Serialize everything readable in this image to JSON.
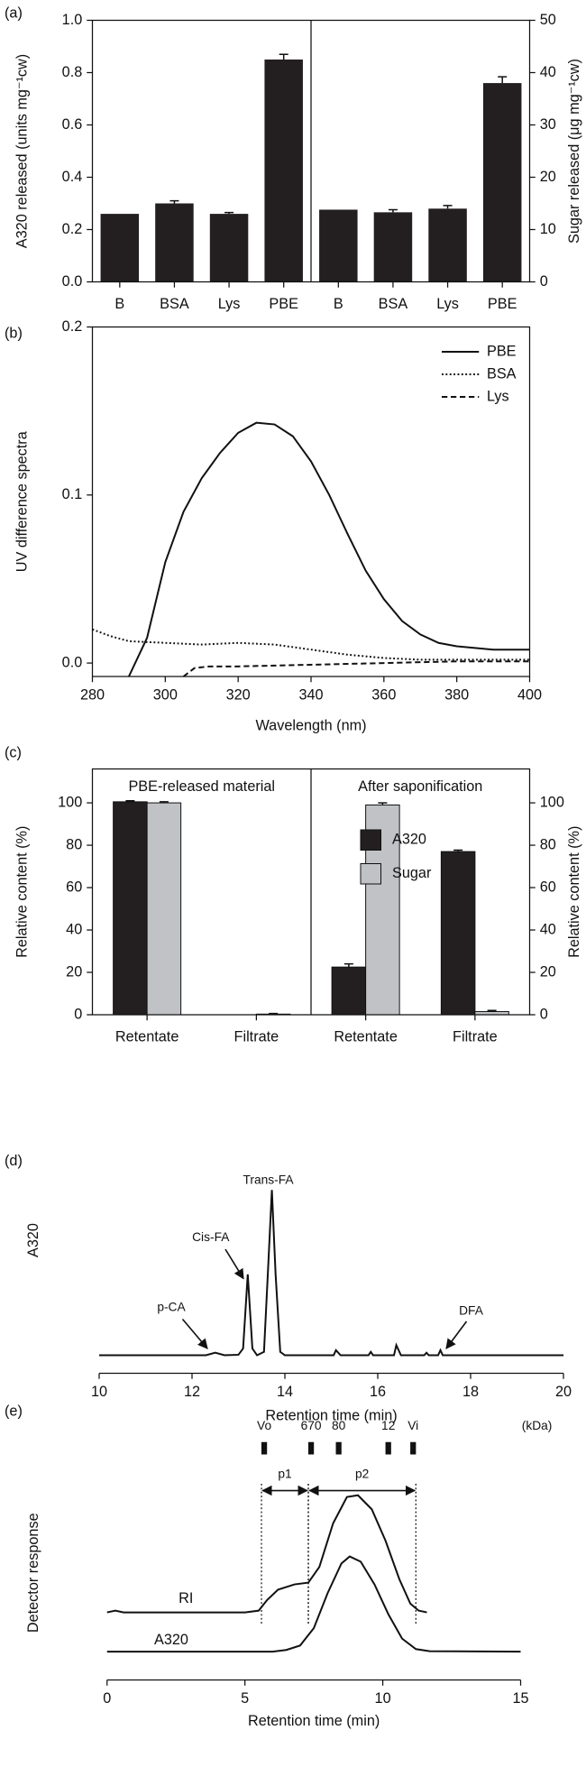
{
  "chart_data": [
    {
      "type": "bar",
      "panel_label": "(a)",
      "ylabel": "A320 released (units mg⁻¹cw)",
      "y2label": "Sugar released (μg mg⁻¹cw)",
      "ylim": [
        0,
        1
      ],
      "yticks": [
        {
          "value": 0,
          "label": "0.0"
        },
        0.2,
        0.4,
        0.6,
        0.8,
        {
          "value": 1,
          "label": "1.0"
        }
      ],
      "y2lim": [
        0,
        50
      ],
      "y2ticks": [
        0,
        10,
        20,
        30,
        40,
        50
      ],
      "color": "#231f20",
      "series": [
        {
          "axis": "y",
          "categories": [
            "B",
            "BSA",
            "Lys",
            "PBE"
          ],
          "values": [
            0.26,
            0.3,
            0.26,
            0.85
          ],
          "errors": [
            0,
            0.01,
            0.005,
            0.02
          ]
        },
        {
          "axis": "y2",
          "categories": [
            "B",
            "BSA",
            "Lys",
            "PBE"
          ],
          "values": [
            13.8,
            13.3,
            14,
            38
          ],
          "errors": [
            0,
            0.5,
            0.6,
            1.2
          ]
        }
      ]
    },
    {
      "type": "line",
      "panel_label": "(b)",
      "xlabel": "Wavelength (nm)",
      "ylabel": "UV difference spectra",
      "xlim": [
        280,
        400
      ],
      "xticks": [
        280,
        300,
        320,
        340,
        360,
        380,
        400
      ],
      "ylim": [
        -0.008,
        0.2
      ],
      "yticks": [
        {
          "value": 0,
          "label": "0.0"
        },
        0.1,
        0.2
      ],
      "legend": "top-right",
      "series": [
        {
          "name": "PBE",
          "color": "#111111",
          "line_style": "solid",
          "x": [
            290,
            295,
            300,
            305,
            310,
            315,
            320,
            325,
            330,
            335,
            340,
            345,
            350,
            355,
            360,
            365,
            370,
            375,
            380,
            390,
            400
          ],
          "values": [
            -0.008,
            0.015,
            0.06,
            0.09,
            0.11,
            0.125,
            0.137,
            0.143,
            0.142,
            0.135,
            0.12,
            0.1,
            0.077,
            0.055,
            0.038,
            0.025,
            0.017,
            0.012,
            0.01,
            0.008,
            0.008
          ]
        },
        {
          "name": "BSA",
          "color": "#111111",
          "line_style": "dotted",
          "x": [
            280,
            285,
            290,
            300,
            310,
            320,
            330,
            340,
            350,
            360,
            370,
            380,
            400
          ],
          "values": [
            0.02,
            0.016,
            0.013,
            0.012,
            0.011,
            0.012,
            0.011,
            0.008,
            0.005,
            0.003,
            0.002,
            0.002,
            0.002
          ]
        },
        {
          "name": "Lys",
          "color": "#111111",
          "line_style": "dashed",
          "x": [
            305,
            308,
            312,
            320,
            340,
            360,
            380,
            400
          ],
          "values": [
            -0.008,
            -0.003,
            -0.002,
            -0.002,
            -0.001,
            0,
            0.001,
            0.001
          ]
        }
      ]
    },
    {
      "type": "grouped_bar",
      "panel_label": "(c)",
      "ylabel": "Relative content (%)",
      "y2label": "Relative content (%)",
      "section_titles": [
        "PBE-released material",
        "After saponification"
      ],
      "categories": [
        "Retentate",
        "Filtrate",
        "Retentate",
        "Filtrate"
      ],
      "ylim": [
        0,
        116
      ],
      "yticks": [
        0,
        20,
        40,
        60,
        80,
        100
      ],
      "y2lim": [
        0,
        116
      ],
      "y2ticks": [
        0,
        20,
        40,
        60,
        80,
        100
      ],
      "legend": "top-right",
      "series": [
        {
          "name": "A320",
          "color": "#231f20",
          "values": [
            100.5,
            0,
            22.5,
            77
          ],
          "errors": [
            0.5,
            0,
            1.5,
            0.7
          ]
        },
        {
          "name": "Sugar",
          "color": "#c0c2c6",
          "values": [
            100,
            0.3,
            99,
            1.5
          ],
          "errors": [
            0.5,
            0.3,
            1,
            0.5
          ]
        }
      ]
    },
    {
      "type": "line",
      "panel_label": "(d)",
      "xlabel": "Retention time (min)",
      "ylabel": "A320",
      "xlim": [
        10,
        20
      ],
      "xticks": [
        10,
        12,
        14,
        16,
        18,
        20
      ],
      "ylim": [
        0,
        105
      ],
      "annotations": [
        "p-CA",
        "Cis-FA",
        "Trans-FA",
        "DFA"
      ],
      "series": [
        {
          "color": "#111111",
          "x": [
            10,
            12.3,
            12.5,
            12.7,
            13.0,
            13.1,
            13.2,
            13.3,
            13.4,
            13.55,
            13.65,
            13.72,
            13.8,
            13.9,
            14.0,
            15.05,
            15.1,
            15.2,
            15.8,
            15.85,
            15.9,
            16.35,
            16.4,
            16.5,
            17.0,
            17.05,
            17.1,
            17.3,
            17.35,
            17.4,
            20
          ],
          "values": [
            2,
            2,
            3.5,
            2,
            2.3,
            6,
            50,
            6,
            2,
            4,
            60,
            100,
            50,
            4,
            2,
            2,
            5,
            2,
            2,
            4,
            2,
            2,
            8,
            2,
            2,
            3.5,
            2,
            2,
            5,
            2,
            2
          ]
        }
      ]
    },
    {
      "type": "line",
      "panel_label": "(e)",
      "xlabel": "Retention time (min)",
      "ylabel": "Detector response",
      "xlim": [
        0,
        15
      ],
      "xticks": [
        0,
        5,
        10,
        15
      ],
      "ylim": [
        0,
        100
      ],
      "markers": {
        "labels": [
          "Vo",
          "670",
          "80",
          "12",
          "Vi"
        ],
        "x": [
          5.7,
          7.4,
          8.4,
          10.2,
          11.1
        ],
        "unit": "(kDa)"
      },
      "fractions": [
        {
          "name": "p1",
          "range": [
            5.6,
            7.3
          ]
        },
        {
          "name": "p2",
          "range": [
            7.3,
            11.2
          ]
        }
      ],
      "series": [
        {
          "name": "RI",
          "color": "#111111",
          "x": [
            0,
            0.3,
            0.6,
            5.0,
            5.5,
            5.8,
            6.2,
            6.8,
            7.3,
            7.7,
            8.2,
            8.7,
            9.1,
            9.6,
            10.1,
            10.6,
            11.0,
            11.3,
            11.6
          ],
          "values": [
            29,
            30,
            29,
            29,
            30,
            36,
            42,
            45,
            46,
            55,
            80,
            95,
            96,
            88,
            70,
            48,
            34,
            30,
            29
          ]
        },
        {
          "name": "A320",
          "color": "#111111",
          "x": [
            0,
            6.0,
            6.5,
            7.0,
            7.5,
            8.0,
            8.5,
            8.8,
            9.2,
            9.7,
            10.2,
            10.7,
            11.2,
            11.7,
            15
          ],
          "values": [
            6.5,
            6.5,
            7.5,
            10,
            20,
            40,
            57,
            61,
            58,
            45,
            28,
            14,
            8,
            6.8,
            6.5
          ]
        }
      ]
    }
  ]
}
